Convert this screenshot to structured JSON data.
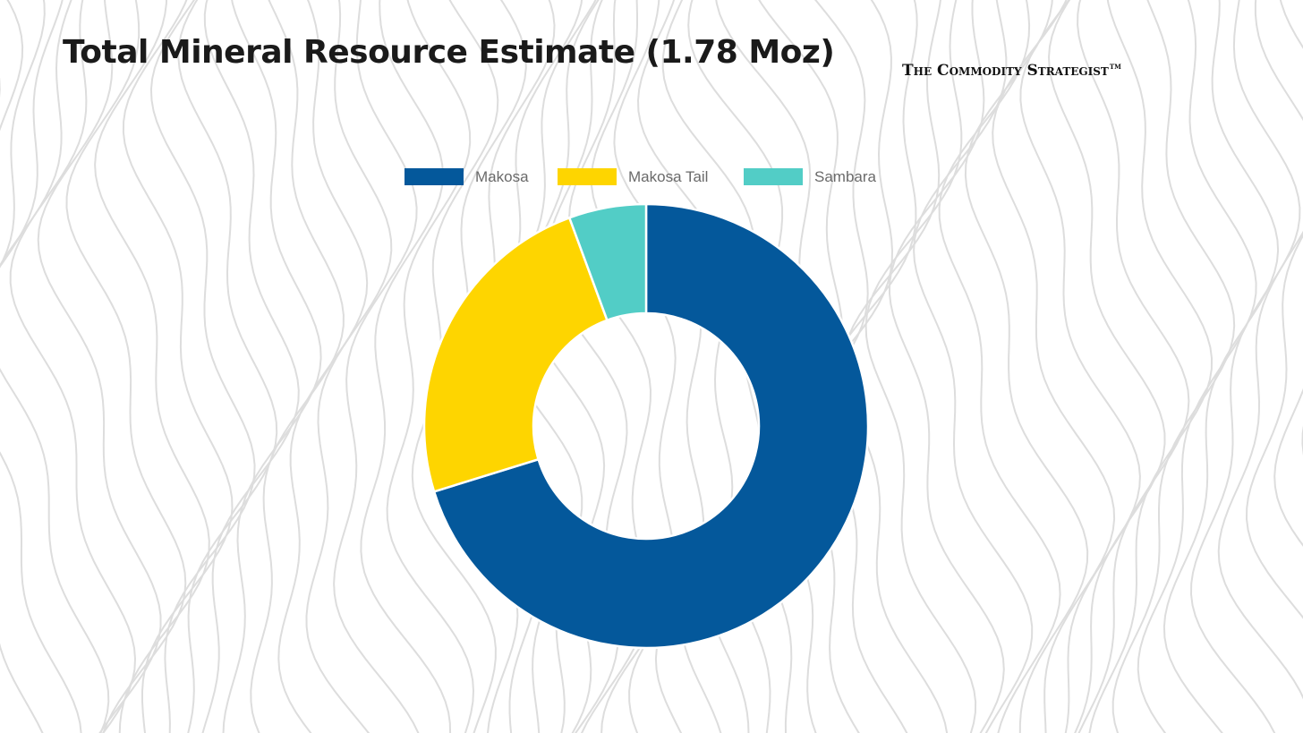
{
  "page": {
    "title": "Total Mineral Resource Estimate (1.78 Moz)",
    "brand": "The Commodity Strategist",
    "brand_mark": "TM"
  },
  "colors": {
    "background": "#ffffff",
    "contour_lines": "#dddddd"
  },
  "chart_data": {
    "type": "pie",
    "subtype": "doughnut",
    "title": "Total Mineral Resource Estimate (1.78 Moz)",
    "units": "Moz",
    "legend_position": "top",
    "categories": [
      "Makosa",
      "Makosa Tail",
      "Sambara"
    ],
    "values": [
      1.25,
      0.43,
      0.1
    ],
    "colors": [
      "#04589b",
      "#fed500",
      "#52cdc6"
    ]
  }
}
